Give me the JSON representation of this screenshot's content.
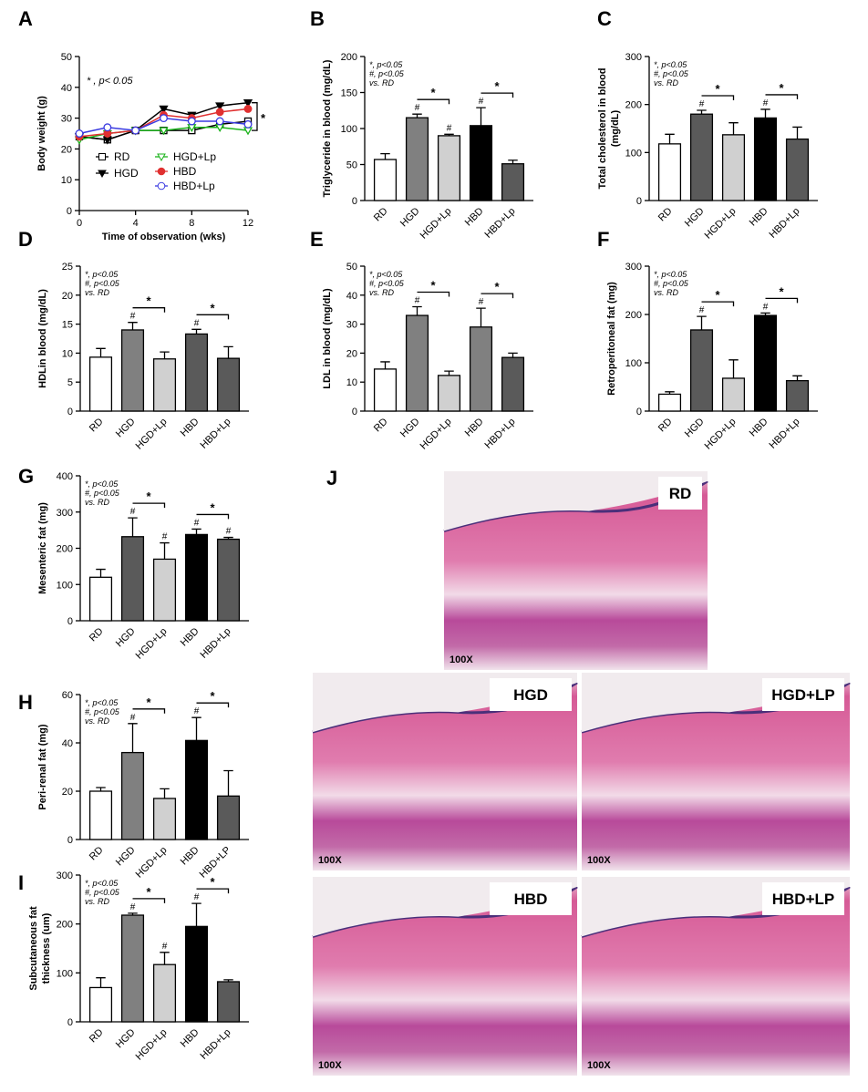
{
  "chart_data": [
    {
      "type": "line",
      "panel": "A",
      "note": "* , p< 0.05",
      "significance": "*",
      "ylabel": [
        "Body weight (g)"
      ],
      "xlabel": "Time of observation (wks)",
      "x": [
        0,
        2,
        4,
        6,
        8,
        10,
        12
      ],
      "xlim": [
        0,
        12
      ],
      "xticks": [
        0,
        4,
        8,
        12
      ],
      "ylim": [
        0,
        50
      ],
      "yticks": [
        0,
        10,
        20,
        30,
        40,
        50
      ],
      "series": [
        {
          "name": "RD",
          "color": "#000000",
          "marker": "square-open",
          "values": [
            24,
            23,
            26,
            26,
            26,
            28,
            29
          ]
        },
        {
          "name": "HGD",
          "color": "#000000",
          "marker": "triangle-down",
          "values": [
            24,
            23,
            26,
            33,
            31,
            34,
            35
          ]
        },
        {
          "name": "HGD+Lp",
          "color": "#1bb31b",
          "marker": "triangle-down-open",
          "values": [
            23,
            25,
            26,
            26,
            27,
            27,
            26
          ]
        },
        {
          "name": "HBD",
          "color": "#e03030",
          "marker": "circle",
          "values": [
            24,
            25,
            26,
            31,
            30,
            32,
            33
          ]
        },
        {
          "name": "HBD+Lp",
          "color": "#3a3ae0",
          "marker": "circle-open",
          "values": [
            25,
            27,
            26,
            30,
            29,
            29,
            28
          ]
        }
      ]
    },
    {
      "type": "bar",
      "panel": "B",
      "note": [
        "*, p<0.05",
        "#, p<0.05",
        "vs. RD"
      ],
      "ylabel": [
        "Triglyceride in blood (mg/dL)"
      ],
      "categories": [
        "RD",
        "HGD",
        "HGD+Lp",
        "HBD",
        "HBD+Lp"
      ],
      "colors": [
        "#ffffff",
        "#808080",
        "#d0d0d0",
        "#000000",
        "#5a5a5a"
      ],
      "values": [
        57,
        115,
        90,
        104,
        51
      ],
      "errors": [
        8,
        5,
        2,
        25,
        5
      ],
      "markers": [
        null,
        "#",
        "#",
        "#",
        null
      ],
      "brackets": [
        {
          "from": "HGD",
          "to": "HGD+Lp",
          "label": "*"
        },
        {
          "from": "HBD",
          "to": "HBD+Lp",
          "label": "*"
        }
      ],
      "ylim": [
        0,
        200
      ],
      "yticks": [
        0,
        50,
        100,
        150,
        200
      ]
    },
    {
      "type": "bar",
      "panel": "C",
      "note": [
        "*, p<0.05",
        "#, p<0.05",
        "vs. RD"
      ],
      "ylabel": [
        "Total cholesterol in blood",
        "(mg/dL)"
      ],
      "categories": [
        "RD",
        "HGD",
        "HGD+Lp",
        "HBD",
        "HBD+Lp"
      ],
      "colors": [
        "#ffffff",
        "#5a5a5a",
        "#d0d0d0",
        "#000000",
        "#5a5a5a"
      ],
      "values": [
        118,
        180,
        137,
        172,
        128
      ],
      "errors": [
        20,
        8,
        25,
        18,
        25
      ],
      "markers": [
        null,
        "#",
        null,
        "#",
        null
      ],
      "brackets": [
        {
          "from": "HGD",
          "to": "HGD+Lp",
          "label": "*"
        },
        {
          "from": "HBD",
          "to": "HBD+Lp",
          "label": "*"
        }
      ],
      "ylim": [
        0,
        300
      ],
      "yticks": [
        0,
        100,
        200,
        300
      ]
    },
    {
      "type": "bar",
      "panel": "D",
      "note": [
        "*, p<0.05",
        "#, p<0.05",
        "vs. RD"
      ],
      "ylabel": [
        "HDLin blood (mg/dL)"
      ],
      "categories": [
        "RD",
        "HGD",
        "HGD+Lp",
        "HBD",
        "HBD+Lp"
      ],
      "colors": [
        "#ffffff",
        "#808080",
        "#d0d0d0",
        "#5a5a5a",
        "#5a5a5a"
      ],
      "values": [
        9.3,
        14,
        9,
        13.3,
        9.1
      ],
      "errors": [
        1.5,
        1.3,
        1.2,
        0.8,
        2
      ],
      "markers": [
        null,
        "#",
        null,
        "#",
        null
      ],
      "brackets": [
        {
          "from": "HGD",
          "to": "HGD+Lp",
          "label": "*"
        },
        {
          "from": "HBD",
          "to": "HBD+Lp",
          "label": "*"
        }
      ],
      "ylim": [
        0,
        25
      ],
      "yticks": [
        0,
        5,
        10,
        15,
        20,
        25
      ]
    },
    {
      "type": "bar",
      "panel": "E",
      "note": [
        "*, p<0.05",
        "#, p<0.05",
        "vs. RD"
      ],
      "ylabel": [
        "LDL in blood (mg/dL)"
      ],
      "categories": [
        "RD",
        "HGD",
        "HGD+Lp",
        "HBD",
        "HBD+Lp"
      ],
      "colors": [
        "#ffffff",
        "#808080",
        "#d0d0d0",
        "#808080",
        "#5a5a5a"
      ],
      "values": [
        14.5,
        33,
        12.3,
        29,
        18.5
      ],
      "errors": [
        2.5,
        3,
        1.5,
        6.5,
        1.5
      ],
      "markers": [
        null,
        "#",
        null,
        "#",
        null
      ],
      "brackets": [
        {
          "from": "HGD",
          "to": "HGD+Lp",
          "label": "*"
        },
        {
          "from": "HBD",
          "to": "HBD+Lp",
          "label": "*"
        }
      ],
      "ylim": [
        0,
        50
      ],
      "yticks": [
        0,
        10,
        20,
        30,
        40,
        50
      ]
    },
    {
      "type": "bar",
      "panel": "F",
      "note": [
        "*, p<0.05",
        "#, p<0.05",
        "vs. RD"
      ],
      "ylabel": [
        "Retroperitoneal fat (mg)"
      ],
      "categories": [
        "RD",
        "HGD",
        "HGD+Lp",
        "HBD",
        "HBD+Lp"
      ],
      "colors": [
        "#ffffff",
        "#5a5a5a",
        "#d0d0d0",
        "#000000",
        "#5a5a5a"
      ],
      "values": [
        35,
        168,
        68,
        198,
        63
      ],
      "errors": [
        5,
        28,
        38,
        5,
        10
      ],
      "markers": [
        null,
        "#",
        null,
        "#",
        null
      ],
      "brackets": [
        {
          "from": "HGD",
          "to": "HGD+Lp",
          "label": "*"
        },
        {
          "from": "HBD",
          "to": "HBD+Lp",
          "label": "*"
        }
      ],
      "ylim": [
        0,
        300
      ],
      "yticks": [
        0,
        100,
        200,
        300
      ]
    },
    {
      "type": "bar",
      "panel": "G",
      "note": [
        "*, p<0.05",
        "#, p<0.05",
        "vs. RD"
      ],
      "ylabel": [
        "Mesenteric fat (mg)"
      ],
      "categories": [
        "RD",
        "HGD",
        "HGD+Lp",
        "HBD",
        "HBD+Lp"
      ],
      "colors": [
        "#ffffff",
        "#5a5a5a",
        "#d0d0d0",
        "#000000",
        "#5a5a5a"
      ],
      "values": [
        120,
        232,
        170,
        238,
        225
      ],
      "errors": [
        22,
        52,
        45,
        15,
        5
      ],
      "markers": [
        null,
        "#",
        "#",
        "#",
        "#"
      ],
      "brackets": [
        {
          "from": "HGD",
          "to": "HGD+Lp",
          "label": "*"
        },
        {
          "from": "HBD",
          "to": "HBD+Lp",
          "label": "*"
        }
      ],
      "ylim": [
        0,
        400
      ],
      "yticks": [
        0,
        100,
        200,
        300,
        400
      ]
    },
    {
      "type": "bar",
      "panel": "H",
      "note": [
        "*, p<0.05",
        "#, p<0.05",
        "vs. RD"
      ],
      "ylabel": [
        "Peri-renal fat (mg)"
      ],
      "categories": [
        "RD",
        "HGD",
        "HGD+Lp",
        "HBD",
        "HBD+LP"
      ],
      "colors": [
        "#ffffff",
        "#808080",
        "#d0d0d0",
        "#000000",
        "#5a5a5a"
      ],
      "values": [
        20,
        36,
        17,
        41,
        18
      ],
      "errors": [
        1.5,
        12,
        4,
        9.5,
        10.5
      ],
      "markers": [
        null,
        "#",
        null,
        "#",
        null
      ],
      "brackets": [
        {
          "from": "HGD",
          "to": "HGD+Lp",
          "label": "*"
        },
        {
          "from": "HBD",
          "to": "HBD+LP",
          "label": "*"
        }
      ],
      "ylim": [
        0,
        60
      ],
      "yticks": [
        0,
        20,
        40,
        60
      ]
    },
    {
      "type": "bar",
      "panel": "I",
      "note": [
        "*, p<0.05",
        "#, p<0.05",
        "vs. RD"
      ],
      "ylabel": [
        "Subcutaneous fat",
        "thickness (um)"
      ],
      "categories": [
        "RD",
        "HGD",
        "HGD+Lp",
        "HBD",
        "HBD+Lp"
      ],
      "colors": [
        "#ffffff",
        "#808080",
        "#d0d0d0",
        "#000000",
        "#5a5a5a"
      ],
      "values": [
        70,
        218,
        117,
        195,
        82
      ],
      "errors": [
        20,
        4,
        25,
        47,
        4
      ],
      "markers": [
        null,
        "#",
        "#",
        "#",
        null
      ],
      "brackets": [
        {
          "from": "HGD",
          "to": "HGD+Lp",
          "label": "*"
        },
        {
          "from": "HBD",
          "to": "HBD+Lp",
          "label": "*"
        }
      ],
      "ylim": [
        0,
        300
      ],
      "yticks": [
        0,
        100,
        200,
        300
      ]
    }
  ],
  "histology": {
    "panel": "J",
    "images": [
      {
        "label": "RD",
        "magnification": "100X"
      },
      {
        "label": "HGD",
        "magnification": "100X"
      },
      {
        "label": "HGD+LP",
        "magnification": "100X"
      },
      {
        "label": "HBD",
        "magnification": "100X"
      },
      {
        "label": "HBD+LP",
        "magnification": "100X"
      }
    ]
  }
}
